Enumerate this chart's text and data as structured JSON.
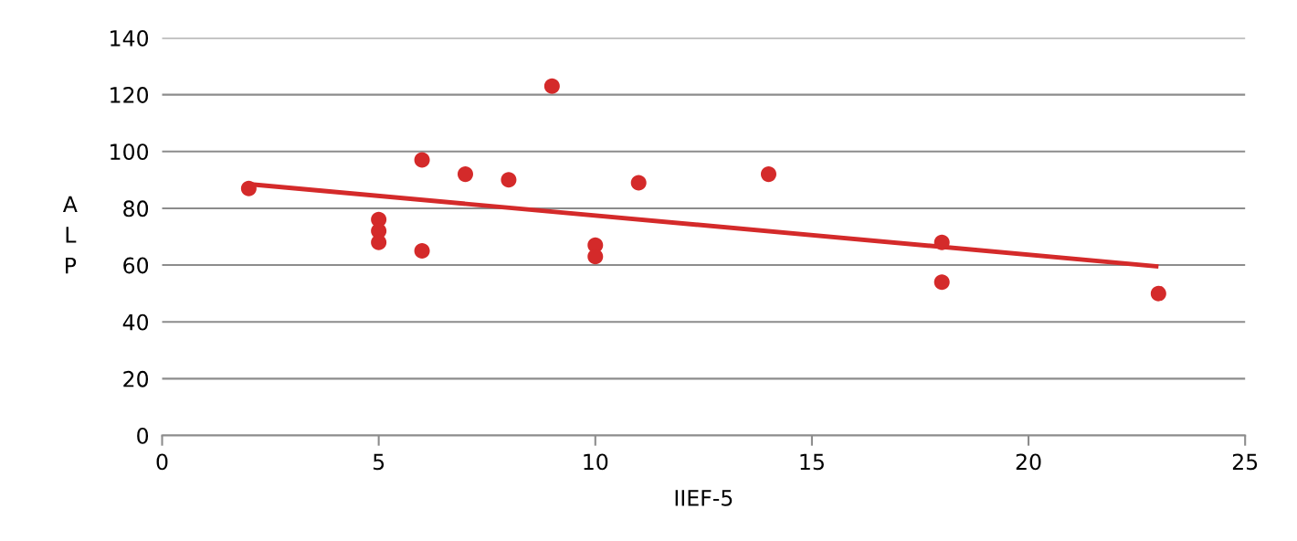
{
  "chart_data": {
    "type": "scatter",
    "xlabel": "IIEF-5",
    "ylabel": "ALP",
    "x": [
      2,
      5,
      5,
      5,
      6,
      6,
      7,
      8,
      9,
      10,
      10,
      11,
      14,
      18,
      18,
      23
    ],
    "series": [
      {
        "color": "#d42a2a",
        "values": [
          87,
          76,
          72,
          68,
          97,
          65,
          92,
          90,
          123,
          67,
          63,
          89,
          92,
          68,
          54,
          50
        ]
      },
      {
        "type": "line",
        "marker": "none",
        "color": "#d42a2a",
        "x": [
          2,
          23
        ],
        "values": [
          88.5,
          59.5
        ]
      }
    ],
    "xlim": [
      0,
      25
    ],
    "xticks": [
      0,
      5,
      10,
      15,
      20,
      25
    ],
    "ylim": [
      0,
      140
    ],
    "yticks": [
      0,
      20,
      40,
      60,
      80,
      100,
      120,
      140
    ],
    "grid": "y",
    "marker": "circle",
    "legend": false
  }
}
